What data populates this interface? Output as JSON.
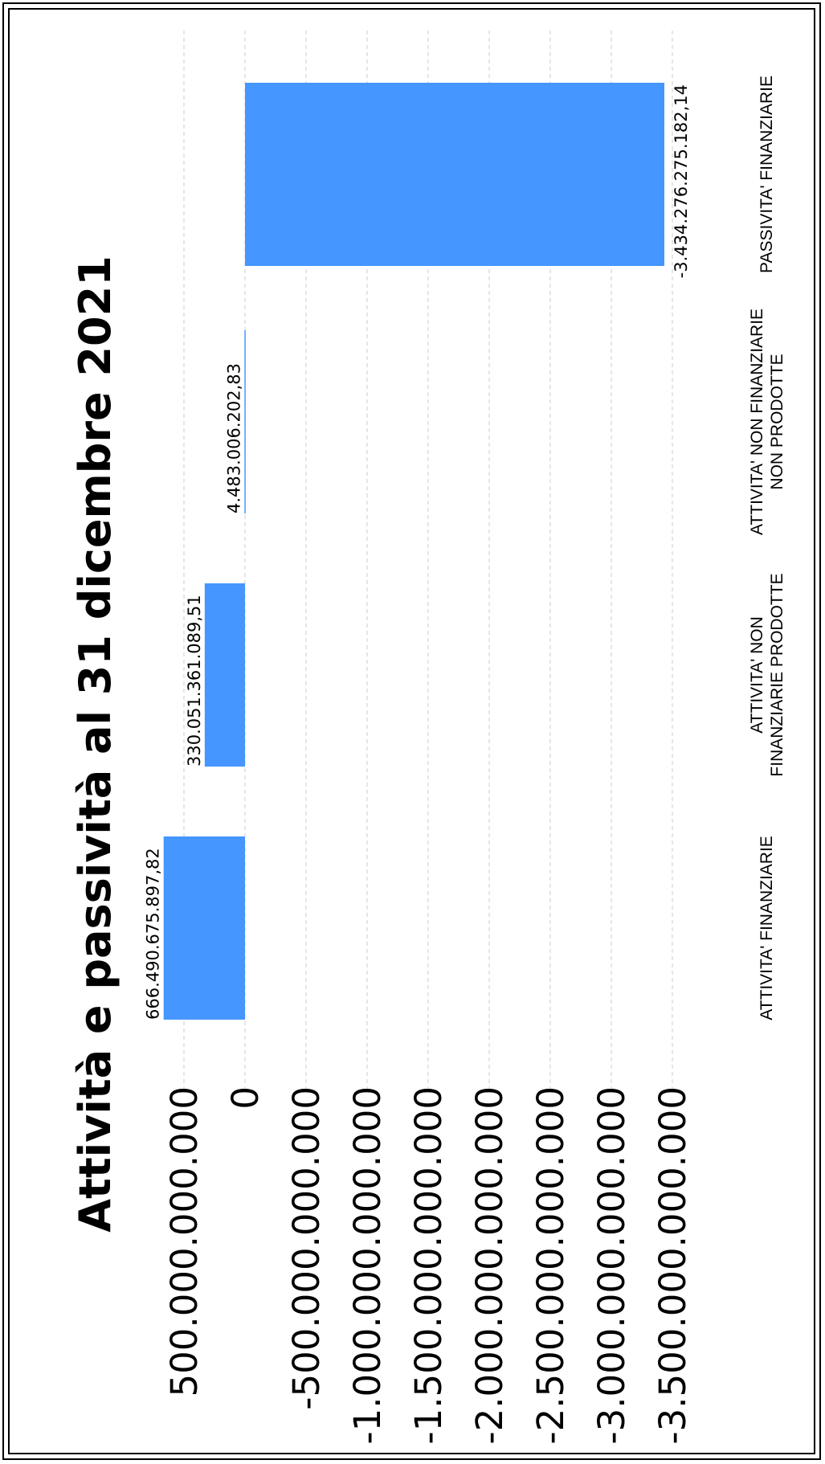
{
  "chart_data": {
    "type": "bar",
    "title": "Attività e passività al 31 dicembre 2021",
    "categories": [
      [
        "ATTIVITA' FINANZIARIE"
      ],
      [
        "ATTIVITA' NON",
        "FINANZIARIE PRODOTTE"
      ],
      [
        "ATTIVITA' NON FINANZIARIE",
        "NON PRODOTTE"
      ],
      [
        "PASSIVITA' FINANZIARIE"
      ]
    ],
    "values": [
      666490675897.82,
      330051361089.51,
      4483006202.83,
      -3434276275182.14
    ],
    "value_labels": [
      "666.490.675.897,82",
      "330.051.361.089,51",
      "4.483.006.202,83",
      "-3.434.276.275.182,14"
    ],
    "ylim": [
      -3500000000000,
      500000000000
    ],
    "y_ticks": [
      500000000000,
      0,
      -500000000000,
      -1000000000000,
      -1500000000000,
      -2000000000000,
      -2500000000000,
      -3000000000000,
      -3500000000000
    ],
    "y_tick_labels": [
      "500.000.000.000",
      "0",
      "-500.000.000.000",
      "-1.000.000.000.000",
      "-1.500.000.000.000",
      "-2.000.000.000.000",
      "-2.500.000.000.000",
      "-3.000.000.000.000",
      "-3.500.000.000.000"
    ],
    "grid": true,
    "orientation": "rotated-90-ccw",
    "bar_color": "#4596ff"
  }
}
